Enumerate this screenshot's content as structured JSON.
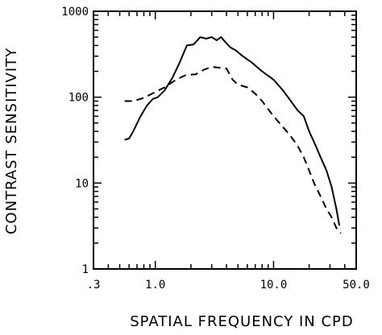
{
  "chart_data": {
    "type": "line",
    "title": "",
    "xlabel": "SPATIAL FREQUENCY IN CPD",
    "ylabel": "CONTRAST SENSITIVITY",
    "x_scale": "log",
    "y_scale": "log",
    "xlim": [
      0.3,
      50.0
    ],
    "ylim": [
      1,
      1000
    ],
    "x_ticks": [
      {
        "value": 0.3,
        "label": ".3"
      },
      {
        "value": 1.0,
        "label": "1.0"
      },
      {
        "value": 10.0,
        "label": "10.0"
      },
      {
        "value": 50.0,
        "label": "50.0"
      }
    ],
    "y_ticks": [
      {
        "value": 1,
        "label": "1"
      },
      {
        "value": 10,
        "label": "10"
      },
      {
        "value": 100,
        "label": "100"
      },
      {
        "value": 1000,
        "label": "1000"
      }
    ],
    "grid": false,
    "legend": "none",
    "series": [
      {
        "style": "solid",
        "x": [
          0.55,
          0.6,
          0.65,
          0.75,
          0.85,
          0.95,
          1.05,
          1.2,
          1.4,
          1.6,
          1.85,
          2.1,
          2.4,
          2.7,
          3.0,
          3.3,
          3.6,
          3.9,
          4.3,
          4.8,
          5.5,
          6.5,
          8.0,
          10.0,
          12.0,
          14.0,
          16.0,
          18.0,
          20.0,
          22.0,
          25.0,
          28.0,
          31.0,
          34.0,
          36.0
        ],
        "y": [
          32,
          33,
          40,
          60,
          80,
          95,
          100,
          120,
          170,
          250,
          400,
          410,
          500,
          480,
          500,
          460,
          500,
          440,
          380,
          350,
          300,
          255,
          200,
          160,
          120,
          90,
          70,
          60,
          40,
          30,
          20,
          14,
          9,
          5,
          3.2
        ]
      },
      {
        "style": "dashed",
        "x": [
          0.55,
          0.65,
          0.8,
          1.0,
          1.2,
          1.5,
          1.8,
          2.2,
          2.6,
          3.0,
          3.5,
          4.0,
          4.5,
          5.0,
          6.0,
          7.0,
          8.0,
          10.0,
          12.0,
          14.0,
          16.0,
          18.0,
          20.0,
          22.0,
          25.0,
          28.0,
          31.0,
          34.0,
          37.0
        ],
        "y": [
          90,
          90,
          98,
          115,
          130,
          160,
          180,
          185,
          210,
          225,
          220,
          215,
          160,
          140,
          130,
          110,
          90,
          60,
          45,
          35,
          27,
          20,
          14,
          10,
          7,
          5,
          4,
          3,
          2.6
        ]
      }
    ]
  }
}
